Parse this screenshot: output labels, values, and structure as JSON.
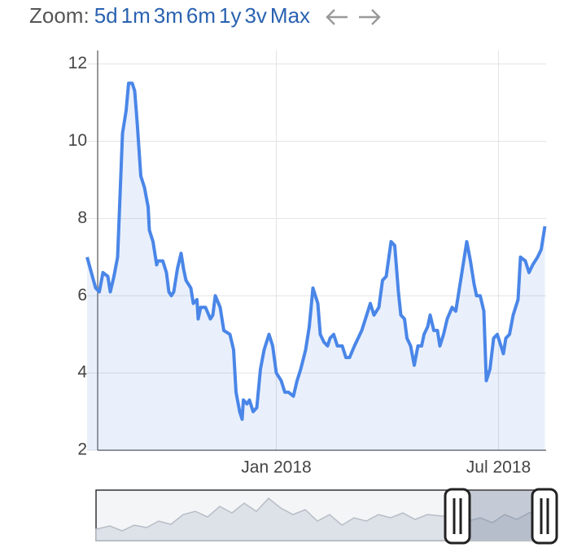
{
  "zoom": {
    "label": "Zoom:",
    "buttons": [
      "5d",
      "1m",
      "3m",
      "6m",
      "1y",
      "3v",
      "Max"
    ]
  },
  "chart_data": {
    "type": "line",
    "x": [
      0,
      7,
      10,
      13,
      17,
      19,
      22,
      25,
      29,
      32,
      34,
      37,
      39,
      41,
      44,
      47,
      50,
      51,
      54,
      57,
      58,
      62,
      65,
      67,
      69,
      71,
      74,
      77,
      79,
      81,
      85,
      87,
      90,
      91,
      93,
      97,
      101,
      103,
      105,
      109,
      112,
      117,
      120,
      122,
      125,
      127,
      128,
      131,
      133,
      136,
      139,
      142,
      145,
      149,
      152,
      155,
      159,
      162,
      165,
      169,
      172,
      175,
      179,
      182,
      185,
      189,
      191,
      194,
      197,
      199,
      202,
      205,
      209,
      212,
      215,
      219,
      222,
      225,
      229,
      232,
      235,
      239,
      242,
      245,
      249,
      252,
      255,
      257,
      260,
      262,
      265,
      268,
      271,
      274,
      276,
      279,
      281,
      284,
      287,
      289,
      292,
      295,
      299,
      302,
      305,
      309,
      311,
      314,
      317,
      319,
      322,
      325,
      327,
      330,
      333,
      336,
      338,
      341,
      343,
      346,
      349,
      353,
      355,
      359,
      362,
      365,
      369,
      372,
      375
    ],
    "series": [
      {
        "color": "#4a86e8",
        "values": [
          7.0,
          6.2,
          6.1,
          6.6,
          6.5,
          6.1,
          6.5,
          7.0,
          10.2,
          10.8,
          11.5,
          11.5,
          11.3,
          10.5,
          9.1,
          8.8,
          8.3,
          7.7,
          7.4,
          6.8,
          6.9,
          6.9,
          6.6,
          6.1,
          6.0,
          6.1,
          6.7,
          7.1,
          6.7,
          6.4,
          6.2,
          5.8,
          5.9,
          5.4,
          5.7,
          5.7,
          5.4,
          5.5,
          6.0,
          5.7,
          5.1,
          5.0,
          4.6,
          3.5,
          3.0,
          2.8,
          3.3,
          3.2,
          3.3,
          3.0,
          3.1,
          4.1,
          4.6,
          5.0,
          4.7,
          4.0,
          3.8,
          3.5,
          3.5,
          3.4,
          3.8,
          4.1,
          4.6,
          5.2,
          6.2,
          5.8,
          5.0,
          4.8,
          4.7,
          4.9,
          5.0,
          4.7,
          4.7,
          4.4,
          4.4,
          4.7,
          4.9,
          5.1,
          5.5,
          5.8,
          5.5,
          5.7,
          6.4,
          6.5,
          7.4,
          7.3,
          6.1,
          5.5,
          5.4,
          4.9,
          4.7,
          4.2,
          4.7,
          4.7,
          5.0,
          5.2,
          5.5,
          5.1,
          5.1,
          4.7,
          5.0,
          5.4,
          5.7,
          5.6,
          6.2,
          7.0,
          7.4,
          6.9,
          6.3,
          6.0,
          6.0,
          5.6,
          3.8,
          4.1,
          4.9,
          5.0,
          4.8,
          4.5,
          4.9,
          5.0,
          5.5,
          5.9,
          7.0,
          6.9,
          6.6,
          6.8,
          7.0,
          7.2,
          7.8
        ]
      }
    ],
    "xlim": [
      0,
      376
    ],
    "xticks": [
      {
        "value": 155,
        "label": "Jan 2018"
      },
      {
        "value": 337,
        "label": "Jul 2018"
      }
    ],
    "ylim": [
      2,
      12.35
    ],
    "yticks": [
      2,
      4,
      6,
      8,
      10,
      12
    ],
    "grid": true
  }
}
